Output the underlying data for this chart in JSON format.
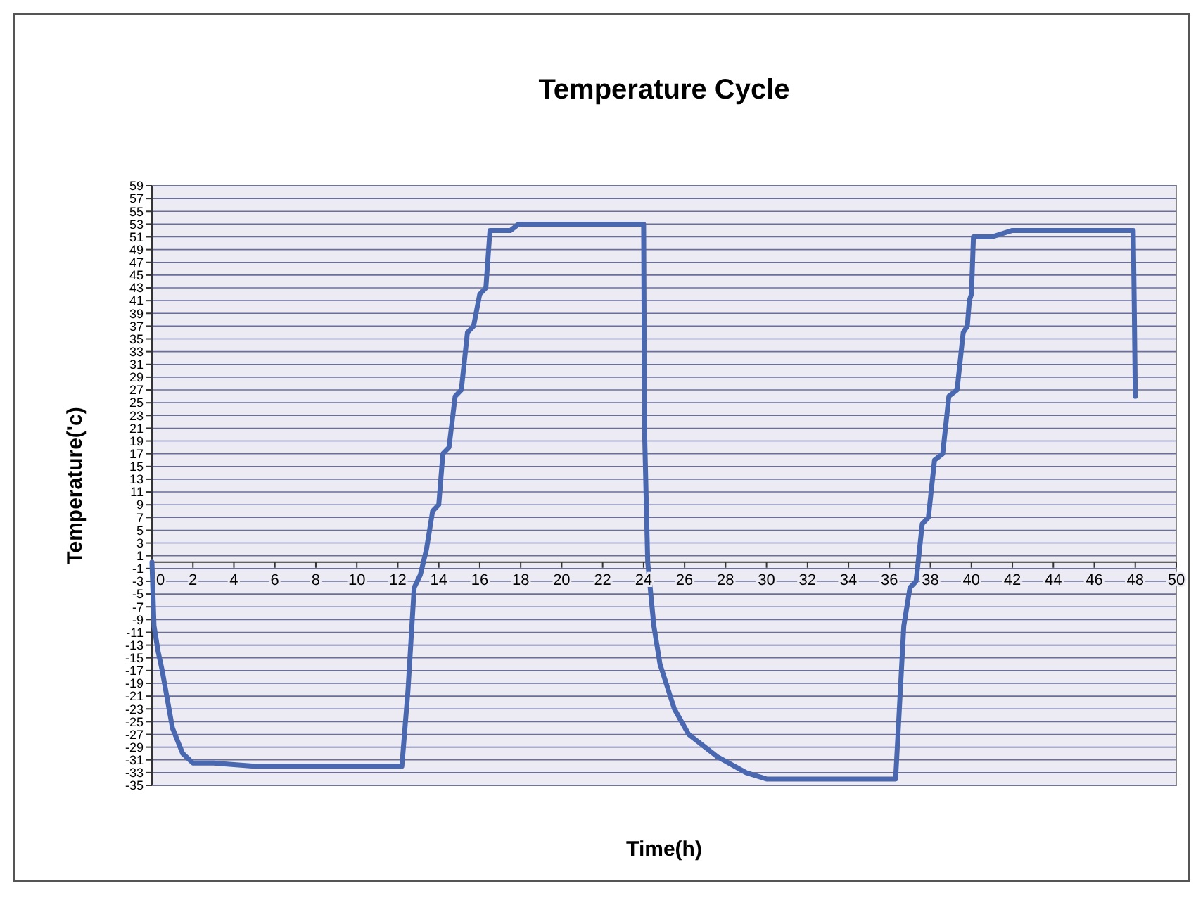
{
  "chart_data": {
    "type": "line",
    "title": "Temperature Cycle",
    "xlabel": "Time(h)",
    "ylabel": "Temperature('c)",
    "xlim": [
      0,
      50
    ],
    "xticks": [
      0,
      2,
      4,
      6,
      8,
      10,
      12,
      14,
      16,
      18,
      20,
      22,
      24,
      26,
      28,
      30,
      32,
      34,
      36,
      38,
      40,
      42,
      44,
      46,
      48,
      50
    ],
    "ylim": [
      -35,
      59
    ],
    "yticks": [
      -35,
      -33,
      -31,
      -29,
      -27,
      -25,
      -23,
      -21,
      -19,
      -17,
      -15,
      -13,
      -11,
      -9,
      -7,
      -5,
      -3,
      -1,
      1,
      3,
      5,
      7,
      9,
      11,
      13,
      15,
      17,
      19,
      21,
      23,
      25,
      27,
      29,
      31,
      33,
      35,
      37,
      39,
      41,
      43,
      45,
      47,
      49,
      51,
      53,
      55,
      57,
      59
    ],
    "grid": "y",
    "marker": "none",
    "line_style": "solid",
    "series": [
      {
        "color": "#4a68b0",
        "x": [
          0,
          0.1,
          0.3,
          0.5,
          1,
          1.5,
          2,
          3,
          5,
          8,
          11,
          12.2,
          12.5,
          12.8,
          13.1,
          13.4,
          13.7,
          14.0,
          14.2,
          14.5,
          14.8,
          15.1,
          15.4,
          15.7,
          16.0,
          16.3,
          16.5,
          17.5,
          17.9,
          20,
          22,
          24,
          24.05,
          24.2,
          24.5,
          24.8,
          25.5,
          26.2,
          27.6,
          29,
          30,
          32,
          34,
          36.3,
          36.7,
          37.0,
          37.3,
          37.6,
          37.9,
          38.2,
          38.6,
          38.9,
          39.3,
          39.6,
          39.8,
          39.9,
          40.0,
          40.1,
          41,
          42,
          44,
          46,
          47.9,
          47.95,
          48
        ],
        "values": [
          0,
          -10,
          -14,
          -17,
          -26,
          -30,
          -31.5,
          -31.5,
          -32,
          -32,
          -32,
          -32,
          -20,
          -4,
          -2,
          2,
          8,
          9,
          17,
          18,
          26,
          27,
          36,
          37,
          42,
          43,
          52,
          52,
          53,
          53,
          53,
          53,
          20,
          0,
          -10,
          -16,
          -23,
          -27,
          -30.5,
          -33,
          -34,
          -34,
          -34,
          -34,
          -10,
          -4,
          -3,
          6,
          7,
          16,
          17,
          26,
          27,
          36,
          37,
          41,
          42,
          51,
          51,
          52,
          52,
          52,
          52,
          40,
          26
        ]
      }
    ]
  }
}
